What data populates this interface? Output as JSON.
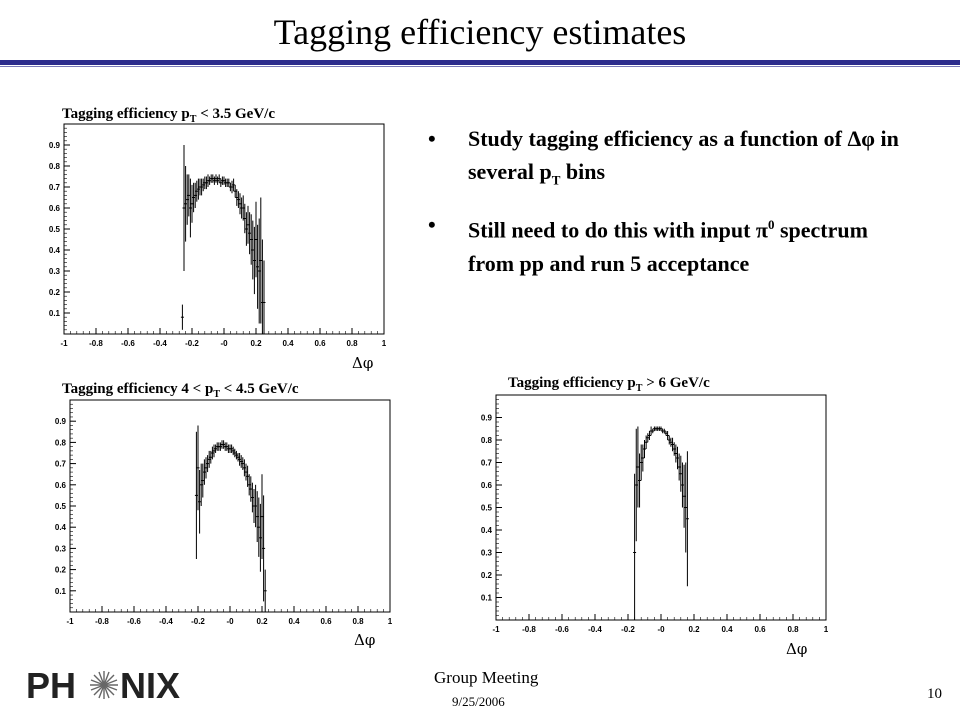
{
  "slide": {
    "title": "Tagging efficiency estimates",
    "page_number": "10",
    "footer_meeting": "Group Meeting",
    "footer_date": "9/25/2006",
    "logo_text": "PHENIX",
    "colors": {
      "rule": "#2c2c8c"
    }
  },
  "bullets": [
    {
      "text_a": "Study tagging efficiency as a function of ",
      "symbol": "Δφ",
      "text_b": " in several p",
      "sub": "T",
      "text_c": " bins"
    },
    {
      "text_a": "Still need to do this with input ",
      "symbol": "π",
      "sup": "0",
      "text_b": " spectrum from pp and run 5 acceptance"
    }
  ],
  "chart_data": [
    {
      "type": "scatter",
      "title": "Tagging efficiency  p_T < 3.5 GeV/c",
      "title_parts": {
        "a": "Tagging efficiency  p",
        "sub": "T",
        "b": " < 3.5 GeV/c"
      },
      "xlabel": "Δφ",
      "xlim": [
        -1,
        1
      ],
      "ylim": [
        0,
        1
      ],
      "xticks": [
        "-1",
        "-0.8",
        "-0.6",
        "-0.4",
        "-0.2",
        "-0",
        "0.2",
        "0.4",
        "0.6",
        "0.8",
        "1"
      ],
      "yticks": [
        "0.1",
        "0.2",
        "0.3",
        "0.4",
        "0.5",
        "0.6",
        "0.7",
        "0.8",
        "0.9"
      ],
      "x": [
        -0.26,
        -0.25,
        -0.24,
        -0.23,
        -0.22,
        -0.21,
        -0.2,
        -0.19,
        -0.18,
        -0.17,
        -0.16,
        -0.15,
        -0.14,
        -0.13,
        -0.12,
        -0.11,
        -0.1,
        -0.09,
        -0.08,
        -0.07,
        -0.06,
        -0.05,
        -0.04,
        -0.03,
        -0.02,
        -0.01,
        0.0,
        0.01,
        0.02,
        0.03,
        0.04,
        0.05,
        0.06,
        0.07,
        0.08,
        0.09,
        0.1,
        0.11,
        0.12,
        0.13,
        0.14,
        0.15,
        0.16,
        0.17,
        0.18,
        0.19,
        0.2,
        0.21,
        0.22,
        0.23,
        0.24,
        0.25
      ],
      "y": [
        0.08,
        0.6,
        0.62,
        0.64,
        0.66,
        0.6,
        0.62,
        0.65,
        0.66,
        0.68,
        0.69,
        0.7,
        0.7,
        0.71,
        0.72,
        0.72,
        0.73,
        0.73,
        0.74,
        0.74,
        0.73,
        0.74,
        0.73,
        0.74,
        0.72,
        0.73,
        0.73,
        0.72,
        0.72,
        0.72,
        0.7,
        0.7,
        0.71,
        0.68,
        0.65,
        0.64,
        0.62,
        0.6,
        0.6,
        0.55,
        0.5,
        0.52,
        0.48,
        0.45,
        0.4,
        0.35,
        0.45,
        0.32,
        0.3,
        0.35,
        0.15,
        0.15
      ],
      "err": [
        0.06,
        0.3,
        0.18,
        0.12,
        0.1,
        0.14,
        0.09,
        0.07,
        0.06,
        0.05,
        0.05,
        0.04,
        0.04,
        0.03,
        0.03,
        0.03,
        0.03,
        0.02,
        0.02,
        0.02,
        0.02,
        0.02,
        0.02,
        0.02,
        0.02,
        0.02,
        0.02,
        0.02,
        0.02,
        0.02,
        0.02,
        0.03,
        0.03,
        0.03,
        0.04,
        0.04,
        0.05,
        0.05,
        0.06,
        0.07,
        0.08,
        0.09,
        0.1,
        0.12,
        0.14,
        0.16,
        0.18,
        0.2,
        0.25,
        0.3,
        0.3,
        0.2
      ]
    },
    {
      "type": "scatter",
      "title": "Tagging efficiency  4 < p_T < 4.5 GeV/c",
      "title_parts": {
        "a": "Tagging efficiency  4 < p",
        "sub": "T",
        "b": " < 4.5 GeV/c"
      },
      "xlabel": "Δφ",
      "xlim": [
        -1,
        1
      ],
      "ylim": [
        0,
        1
      ],
      "xticks": [
        "-1",
        "-0.8",
        "-0.6",
        "-0.4",
        "-0.2",
        "-0",
        "0.2",
        "0.4",
        "0.6",
        "0.8",
        "1"
      ],
      "yticks": [
        "0.1",
        "0.2",
        "0.3",
        "0.4",
        "0.5",
        "0.6",
        "0.7",
        "0.8",
        "0.9"
      ],
      "x": [
        -0.21,
        -0.2,
        -0.19,
        -0.18,
        -0.17,
        -0.16,
        -0.15,
        -0.14,
        -0.13,
        -0.12,
        -0.11,
        -0.1,
        -0.09,
        -0.08,
        -0.07,
        -0.06,
        -0.05,
        -0.04,
        -0.03,
        -0.02,
        -0.01,
        0.0,
        0.01,
        0.02,
        0.03,
        0.04,
        0.05,
        0.06,
        0.07,
        0.08,
        0.09,
        0.1,
        0.11,
        0.12,
        0.13,
        0.14,
        0.15,
        0.16,
        0.17,
        0.18,
        0.19,
        0.2,
        0.21,
        0.22
      ],
      "y": [
        0.55,
        0.68,
        0.52,
        0.6,
        0.62,
        0.66,
        0.68,
        0.7,
        0.72,
        0.73,
        0.75,
        0.76,
        0.77,
        0.78,
        0.78,
        0.78,
        0.79,
        0.79,
        0.78,
        0.78,
        0.77,
        0.77,
        0.77,
        0.76,
        0.75,
        0.74,
        0.73,
        0.72,
        0.71,
        0.7,
        0.68,
        0.66,
        0.64,
        0.6,
        0.58,
        0.54,
        0.5,
        0.5,
        0.45,
        0.4,
        0.35,
        0.45,
        0.3,
        0.1
      ],
      "err": [
        0.3,
        0.2,
        0.15,
        0.1,
        0.08,
        0.06,
        0.05,
        0.04,
        0.04,
        0.03,
        0.03,
        0.03,
        0.02,
        0.02,
        0.02,
        0.02,
        0.02,
        0.02,
        0.02,
        0.02,
        0.02,
        0.02,
        0.02,
        0.02,
        0.02,
        0.02,
        0.02,
        0.03,
        0.03,
        0.03,
        0.04,
        0.04,
        0.05,
        0.05,
        0.06,
        0.07,
        0.08,
        0.1,
        0.12,
        0.14,
        0.16,
        0.2,
        0.25,
        0.1
      ]
    },
    {
      "type": "scatter",
      "title": "Tagging efficiency  p_T > 6 GeV/c",
      "title_parts": {
        "a": "Tagging efficiency   p",
        "sub": "T",
        "b": "  > 6 GeV/c"
      },
      "xlabel": "Δφ",
      "xlim": [
        -1,
        1
      ],
      "ylim": [
        0,
        1
      ],
      "xticks": [
        "-1",
        "-0.8",
        "-0.6",
        "-0.4",
        "-0.2",
        "-0",
        "0.2",
        "0.4",
        "0.6",
        "0.8",
        "1"
      ],
      "yticks": [
        "0.1",
        "0.2",
        "0.3",
        "0.4",
        "0.5",
        "0.6",
        "0.7",
        "0.8",
        "0.9"
      ],
      "x": [
        -0.16,
        -0.15,
        -0.14,
        -0.13,
        -0.12,
        -0.11,
        -0.1,
        -0.09,
        -0.08,
        -0.07,
        -0.06,
        -0.05,
        -0.04,
        -0.03,
        -0.02,
        -0.01,
        0.0,
        0.01,
        0.02,
        0.03,
        0.04,
        0.05,
        0.06,
        0.07,
        0.08,
        0.09,
        0.1,
        0.11,
        0.12,
        0.13,
        0.14,
        0.15,
        0.16
      ],
      "y": [
        0.3,
        0.6,
        0.68,
        0.62,
        0.7,
        0.72,
        0.76,
        0.79,
        0.81,
        0.82,
        0.84,
        0.84,
        0.85,
        0.85,
        0.85,
        0.85,
        0.85,
        0.84,
        0.84,
        0.83,
        0.82,
        0.8,
        0.79,
        0.78,
        0.76,
        0.74,
        0.72,
        0.68,
        0.65,
        0.6,
        0.55,
        0.5,
        0.45
      ],
      "err": [
        0.35,
        0.25,
        0.18,
        0.12,
        0.08,
        0.06,
        0.04,
        0.03,
        0.02,
        0.02,
        0.02,
        0.01,
        0.01,
        0.01,
        0.01,
        0.01,
        0.01,
        0.01,
        0.01,
        0.01,
        0.02,
        0.02,
        0.02,
        0.03,
        0.03,
        0.04,
        0.05,
        0.06,
        0.08,
        0.1,
        0.14,
        0.2,
        0.3
      ]
    }
  ]
}
